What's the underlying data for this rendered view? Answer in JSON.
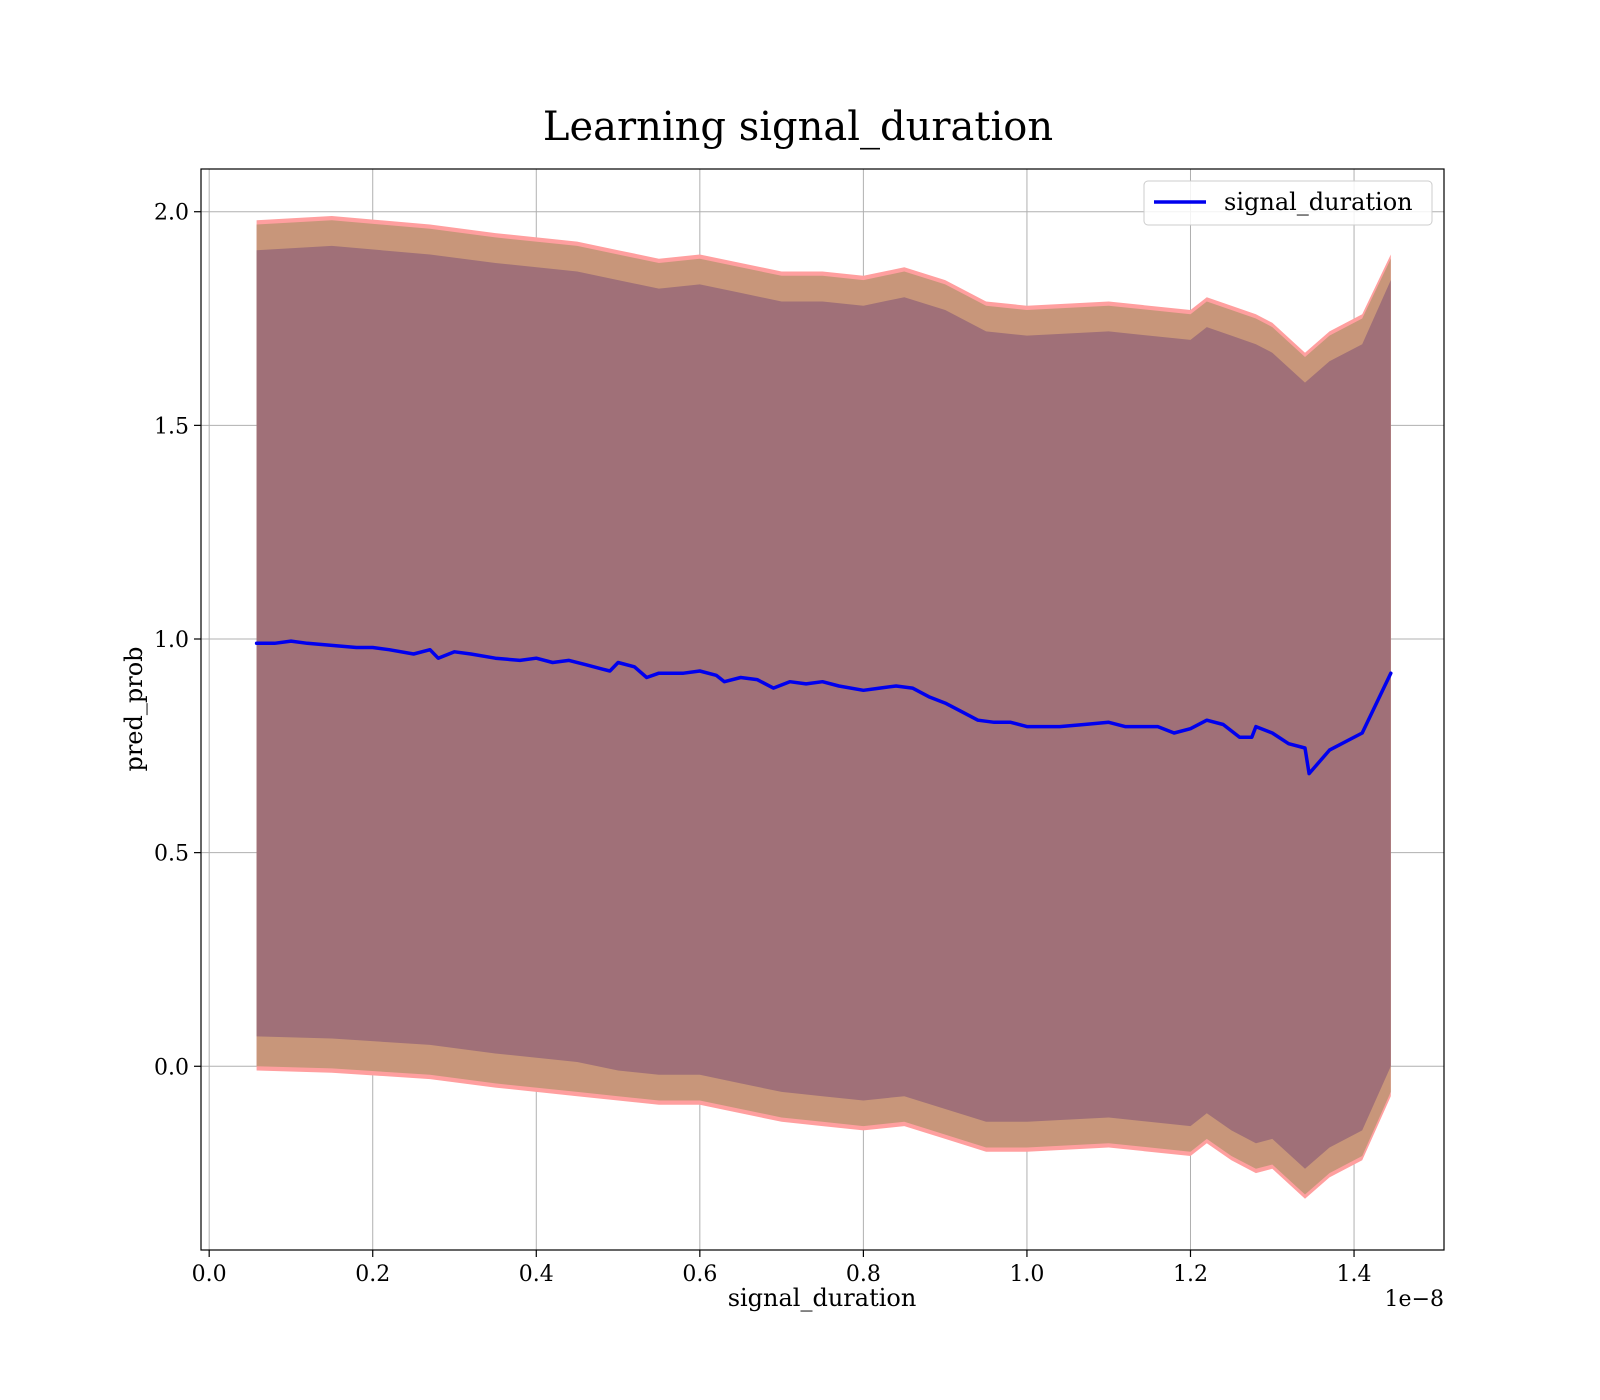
{
  "chart_data": {
    "type": "line",
    "title": "Learning signal_duration",
    "xlabel": "signal_duration",
    "ylabel": "pred_prob",
    "x_offset_label": "1e−8",
    "xlim": [
      -0.01,
      1.51
    ],
    "ylim": [
      -0.43,
      2.1
    ],
    "x_ticks": [
      0.0,
      0.2,
      0.4,
      0.6,
      0.8,
      1.0,
      1.2,
      1.4
    ],
    "x_tick_labels": [
      "0.0",
      "0.2",
      "0.4",
      "0.6",
      "0.8",
      "1.0",
      "1.2",
      "1.4"
    ],
    "y_ticks": [
      0.0,
      0.5,
      1.0,
      1.5,
      2.0
    ],
    "y_tick_labels": [
      "0.0",
      "0.5",
      "1.0",
      "1.5",
      "2.0"
    ],
    "grid": true,
    "legend_position": "top-right",
    "colors": {
      "line": "#0000ee",
      "outer_band": "#ff9f9f",
      "middle_band": "#c8967a",
      "inner_band": "#a07078",
      "grid": "#b0b0b0"
    },
    "series": [
      {
        "name": "signal_duration",
        "x": [
          0.058,
          0.08,
          0.1,
          0.12,
          0.15,
          0.18,
          0.2,
          0.22,
          0.25,
          0.27,
          0.28,
          0.3,
          0.32,
          0.35,
          0.38,
          0.4,
          0.42,
          0.44,
          0.46,
          0.48,
          0.49,
          0.5,
          0.52,
          0.535,
          0.55,
          0.58,
          0.6,
          0.62,
          0.63,
          0.65,
          0.67,
          0.69,
          0.71,
          0.73,
          0.75,
          0.77,
          0.8,
          0.82,
          0.84,
          0.86,
          0.88,
          0.9,
          0.92,
          0.94,
          0.96,
          0.98,
          1.0,
          1.02,
          1.04,
          1.07,
          1.1,
          1.12,
          1.14,
          1.16,
          1.18,
          1.2,
          1.22,
          1.24,
          1.26,
          1.275,
          1.28,
          1.3,
          1.32,
          1.34,
          1.345,
          1.37,
          1.41,
          1.445
        ],
        "y": [
          0.99,
          0.99,
          0.995,
          0.99,
          0.985,
          0.98,
          0.98,
          0.975,
          0.965,
          0.975,
          0.955,
          0.97,
          0.965,
          0.955,
          0.95,
          0.955,
          0.945,
          0.95,
          0.94,
          0.93,
          0.925,
          0.945,
          0.935,
          0.91,
          0.92,
          0.92,
          0.925,
          0.915,
          0.9,
          0.91,
          0.905,
          0.885,
          0.9,
          0.895,
          0.9,
          0.89,
          0.88,
          0.885,
          0.89,
          0.885,
          0.865,
          0.85,
          0.83,
          0.81,
          0.805,
          0.805,
          0.795,
          0.795,
          0.795,
          0.8,
          0.805,
          0.795,
          0.795,
          0.795,
          0.78,
          0.79,
          0.81,
          0.8,
          0.77,
          0.77,
          0.795,
          0.78,
          0.755,
          0.745,
          0.685,
          0.74,
          0.78,
          0.92
        ]
      }
    ],
    "bands": [
      {
        "role": "outer",
        "x": [
          0.058,
          0.15,
          0.27,
          0.35,
          0.45,
          0.5,
          0.55,
          0.6,
          0.65,
          0.7,
          0.75,
          0.8,
          0.85,
          0.9,
          0.95,
          1.0,
          1.1,
          1.2,
          1.22,
          1.25,
          1.28,
          1.3,
          1.34,
          1.37,
          1.41,
          1.445
        ],
        "upper": [
          1.98,
          1.99,
          1.97,
          1.95,
          1.93,
          1.91,
          1.89,
          1.9,
          1.88,
          1.86,
          1.86,
          1.85,
          1.87,
          1.84,
          1.79,
          1.78,
          1.79,
          1.77,
          1.8,
          1.78,
          1.76,
          1.74,
          1.67,
          1.72,
          1.76,
          1.9
        ],
        "lower": [
          -0.01,
          -0.015,
          -0.03,
          -0.05,
          -0.07,
          -0.08,
          -0.09,
          -0.09,
          -0.11,
          -0.13,
          -0.14,
          -0.15,
          -0.14,
          -0.17,
          -0.2,
          -0.2,
          -0.19,
          -0.21,
          -0.18,
          -0.22,
          -0.25,
          -0.24,
          -0.31,
          -0.26,
          -0.22,
          -0.07
        ]
      },
      {
        "role": "middle",
        "x": [
          0.058,
          0.15,
          0.27,
          0.35,
          0.45,
          0.5,
          0.55,
          0.6,
          0.65,
          0.7,
          0.75,
          0.8,
          0.85,
          0.9,
          0.95,
          1.0,
          1.1,
          1.2,
          1.22,
          1.25,
          1.28,
          1.3,
          1.34,
          1.37,
          1.41,
          1.445
        ],
        "upper": [
          1.97,
          1.98,
          1.96,
          1.94,
          1.92,
          1.9,
          1.88,
          1.89,
          1.87,
          1.85,
          1.85,
          1.84,
          1.86,
          1.83,
          1.78,
          1.77,
          1.78,
          1.76,
          1.79,
          1.77,
          1.75,
          1.73,
          1.66,
          1.71,
          1.75,
          1.89
        ],
        "lower": [
          0.0,
          -0.005,
          -0.02,
          -0.04,
          -0.06,
          -0.07,
          -0.08,
          -0.08,
          -0.1,
          -0.12,
          -0.13,
          -0.14,
          -0.13,
          -0.16,
          -0.19,
          -0.19,
          -0.18,
          -0.2,
          -0.17,
          -0.21,
          -0.24,
          -0.23,
          -0.3,
          -0.25,
          -0.21,
          -0.06
        ]
      },
      {
        "role": "inner",
        "x": [
          0.058,
          0.15,
          0.27,
          0.35,
          0.45,
          0.5,
          0.55,
          0.6,
          0.65,
          0.7,
          0.75,
          0.8,
          0.85,
          0.9,
          0.95,
          1.0,
          1.1,
          1.2,
          1.22,
          1.25,
          1.28,
          1.3,
          1.34,
          1.37,
          1.41,
          1.445
        ],
        "upper": [
          1.91,
          1.92,
          1.9,
          1.88,
          1.86,
          1.84,
          1.82,
          1.83,
          1.81,
          1.79,
          1.79,
          1.78,
          1.8,
          1.77,
          1.72,
          1.71,
          1.72,
          1.7,
          1.73,
          1.71,
          1.69,
          1.67,
          1.6,
          1.65,
          1.69,
          1.84
        ],
        "lower": [
          0.07,
          0.065,
          0.05,
          0.03,
          0.01,
          -0.01,
          -0.02,
          -0.02,
          -0.04,
          -0.06,
          -0.07,
          -0.08,
          -0.07,
          -0.1,
          -0.13,
          -0.13,
          -0.12,
          -0.14,
          -0.11,
          -0.15,
          -0.18,
          -0.17,
          -0.24,
          -0.19,
          -0.15,
          0.0
        ]
      }
    ]
  }
}
